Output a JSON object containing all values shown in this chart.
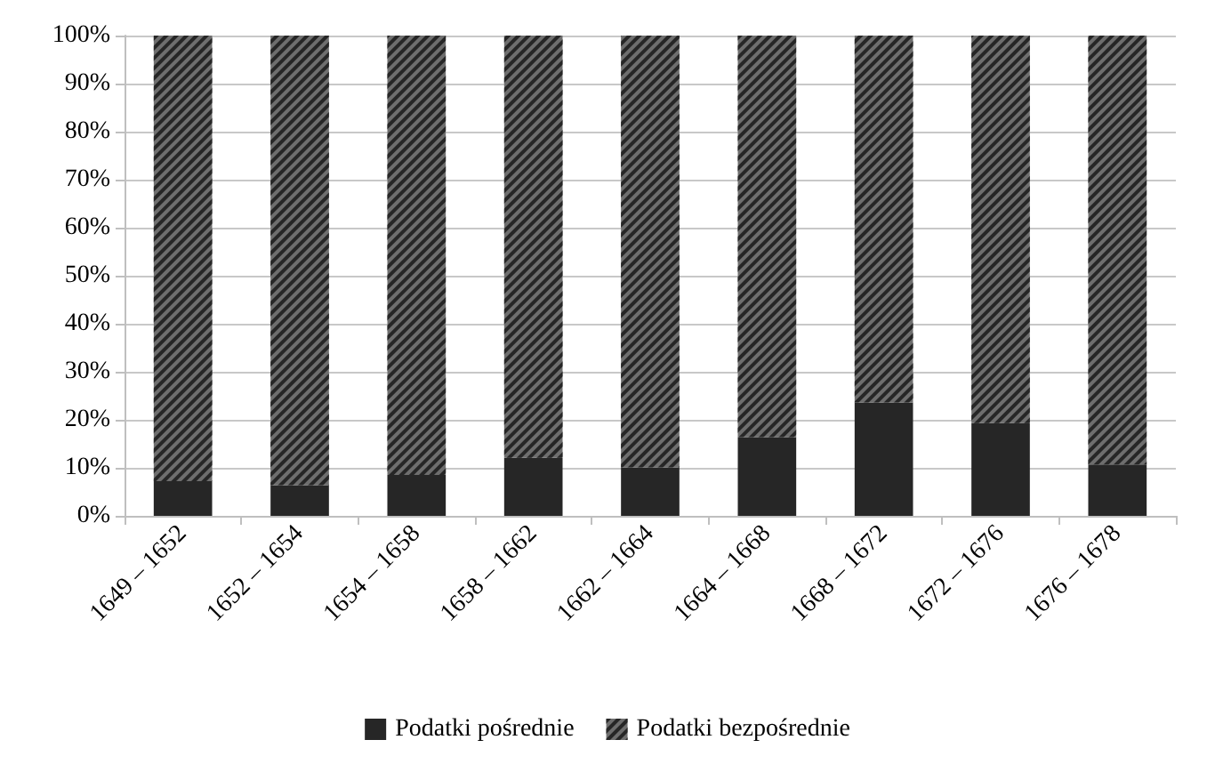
{
  "chart_data": {
    "type": "bar",
    "stacked": true,
    "categories": [
      "1649 – 1652",
      "1652 – 1654",
      "1654 – 1658",
      "1658 – 1662",
      "1662 – 1664",
      "1664 – 1668",
      "1668 – 1672",
      "1672 – 1676",
      "1676 – 1678"
    ],
    "series": [
      {
        "name": "Podatki pośrednie",
        "color": "#262626",
        "values": [
          7.2,
          6.4,
          8.5,
          12.1,
          10.1,
          16.4,
          23.6,
          19.3,
          10.7
        ]
      },
      {
        "name": "Podatki bezpośrednie",
        "color": "#6e6e6e",
        "values": [
          92.8,
          93.6,
          91.5,
          87.9,
          89.9,
          83.6,
          76.4,
          80.7,
          89.3
        ]
      }
    ],
    "ylim": [
      0,
      100
    ],
    "yticks": [
      {
        "value": 0,
        "label": "0%"
      },
      {
        "value": 10,
        "label": "10%"
      },
      {
        "value": 20,
        "label": "20%"
      },
      {
        "value": 30,
        "label": "30%"
      },
      {
        "value": 40,
        "label": "40%"
      },
      {
        "value": 50,
        "label": "50%"
      },
      {
        "value": 60,
        "label": "60%"
      },
      {
        "value": 70,
        "label": "70%"
      },
      {
        "value": 80,
        "label": "80%"
      },
      {
        "value": 90,
        "label": "90%"
      },
      {
        "value": 100,
        "label": "100%"
      }
    ],
    "grid": "y",
    "legend": "bottom"
  }
}
